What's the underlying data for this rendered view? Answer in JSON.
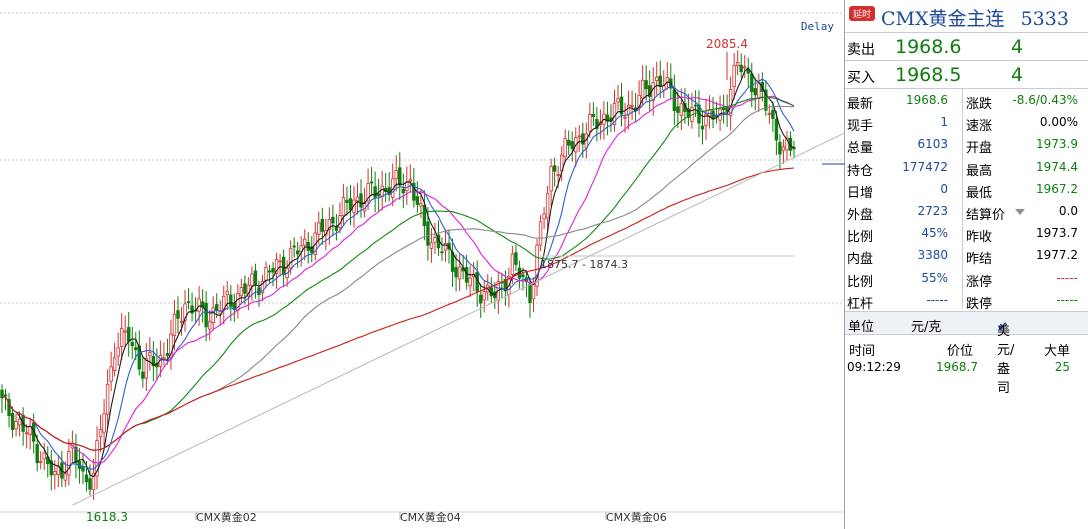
{
  "chart_data": {
    "type": "candlestick",
    "title": "",
    "delay_label": "Delay",
    "xlabel": "",
    "ylabel": "",
    "y_range": [
      1595,
      2110
    ],
    "x_tick_labels": [
      "CMX黄金02",
      "CMX黄金04",
      "CMX黄金06"
    ],
    "annotations": {
      "high_label": "2085.4",
      "low_label": "1618.3",
      "range_label": "1875.7 - 1874.3"
    },
    "series": [
      {
        "name": "MA5",
        "color": "#1c1c1c",
        "kind": "moving_average",
        "period": 5
      },
      {
        "name": "MA10",
        "color": "#2f5fd0",
        "kind": "moving_average",
        "period": 10
      },
      {
        "name": "MA20",
        "color": "#e020d8",
        "kind": "moving_average",
        "period": 20
      },
      {
        "name": "MA40",
        "color": "#128a12",
        "kind": "moving_average",
        "period": 40
      },
      {
        "name": "MA60",
        "color": "#888888",
        "kind": "moving_average",
        "period": 60
      },
      {
        "name": "MA120",
        "color": "#cc1b1b",
        "kind": "moving_average",
        "period": 120
      }
    ],
    "keypoints": [
      [
        0,
        1705
      ],
      [
        8,
        1670
      ],
      [
        15,
        1628
      ],
      [
        20,
        1655
      ],
      [
        23,
        1628
      ],
      [
        26,
        1632
      ],
      [
        32,
        1765
      ],
      [
        36,
        1775
      ],
      [
        40,
        1740
      ],
      [
        46,
        1755
      ],
      [
        52,
        1810
      ],
      [
        58,
        1795
      ],
      [
        66,
        1815
      ],
      [
        76,
        1840
      ],
      [
        90,
        1880
      ],
      [
        100,
        1915
      ],
      [
        110,
        1930
      ],
      [
        116,
        1935
      ],
      [
        120,
        1885
      ],
      [
        126,
        1860
      ],
      [
        133,
        1830
      ],
      [
        140,
        1815
      ],
      [
        145,
        1850
      ],
      [
        150,
        1820
      ],
      [
        156,
        1945
      ],
      [
        162,
        1975
      ],
      [
        170,
        2000
      ],
      [
        180,
        2015
      ],
      [
        185,
        2040
      ],
      [
        188,
        2035
      ],
      [
        194,
        2005
      ],
      [
        204,
        2000
      ],
      [
        209,
        2055
      ],
      [
        213,
        2040
      ],
      [
        218,
        2005
      ],
      [
        222,
        1965
      ],
      [
        225,
        1968.6
      ]
    ]
  },
  "panel": {
    "badge": "延时",
    "title": "CMX黄金主连",
    "code": "5333",
    "sell": {
      "label": "卖出",
      "price": "1968.6",
      "volume": "4"
    },
    "buy": {
      "label": "买入",
      "price": "1968.5",
      "volume": "4"
    },
    "stats": [
      {
        "l1": "最新",
        "v1": "1968.6",
        "c1": "green",
        "l2": "涨跌",
        "v2": "-8.6/0.43%",
        "c2": "green"
      },
      {
        "l1": "现手",
        "v1": "1",
        "c1": "blue",
        "l2": "速涨",
        "v2": "0.00%",
        "c2": "black"
      },
      {
        "l1": "总量",
        "v1": "6103",
        "c1": "blue",
        "l2": "开盘",
        "v2": "1973.9",
        "c2": "green"
      },
      {
        "l1": "持仓",
        "v1": "177472",
        "c1": "blue",
        "l2": "最高",
        "v2": "1974.4",
        "c2": "green"
      },
      {
        "l1": "日增",
        "v1": "0",
        "c1": "blue",
        "l2": "最低",
        "v2": "1967.2",
        "c2": "green"
      },
      {
        "l1": "外盘",
        "v1": "2723",
        "c1": "blue",
        "l2": "结算价",
        "v2": "0.0",
        "c2": "black"
      },
      {
        "l1": "比例",
        "v1": "45%",
        "c1": "blue",
        "l2": "昨收",
        "v2": "1973.7",
        "c2": "black"
      },
      {
        "l1": "内盘",
        "v1": "3380",
        "c1": "blue",
        "l2": "昨结",
        "v2": "1977.2",
        "c2": "black"
      },
      {
        "l1": "比例",
        "v1": "55%",
        "c1": "blue",
        "l2": "涨停",
        "v2": "-----",
        "c2": "red"
      },
      {
        "l1": "杠杆",
        "v1": "-----",
        "c1": "blue",
        "l2": "跌停",
        "v2": "-----",
        "c2": "green"
      }
    ],
    "unit": {
      "label": "单位",
      "value": "元/克",
      "currency": "美元/盎司"
    },
    "ticks_header": {
      "time": "时间",
      "price": "价位",
      "size": "大单"
    },
    "ticks": [
      {
        "time": "09:12:29",
        "price": "1968.7",
        "size": "25"
      }
    ]
  }
}
